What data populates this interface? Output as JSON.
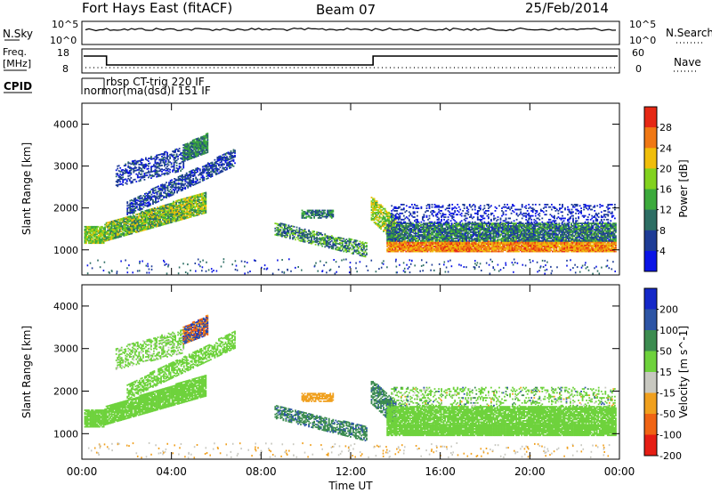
{
  "header": {
    "station": "Fort Hays East (fitACF)",
    "beam": "Beam 07",
    "date": "25/Feb/2014"
  },
  "strips": {
    "nsky": {
      "label": "N.Sky",
      "tick_top": "10^5",
      "tick_bottom": "10^0"
    },
    "nsearch": {
      "label": "N.Search",
      "tick_top": "10^5",
      "tick_bottom": "10^0"
    },
    "freq": {
      "label_line1": "Freq.",
      "label_line2": "[MHz]",
      "tick_top": "18",
      "tick_bottom": "8"
    },
    "nave": {
      "label": "Nave",
      "tick_top": "60",
      "tick_bottom": "0"
    },
    "cpid": {
      "label": "CPID",
      "program_1": "rbsp CT-trig 220 IF",
      "program_2": "normor(ma(dsd)I 151 IF"
    }
  },
  "chart_data": [
    {
      "type": "heatmap",
      "title": "",
      "xlabel": "",
      "ylabel": "Slant Range [km]",
      "xlim": [
        0,
        24
      ],
      "ylim": [
        400,
        4500
      ],
      "x_ticks": [
        0,
        4,
        8,
        12,
        16,
        20,
        24
      ],
      "y_ticks": [
        1000,
        2000,
        3000,
        4000
      ],
      "y_tick_labels": [
        "1000",
        "2000",
        "3000",
        "4000"
      ],
      "colorbar": {
        "label": "Power [dB]",
        "range": [
          0,
          32
        ],
        "ticks": [
          4,
          8,
          12,
          16,
          20,
          24,
          28
        ],
        "tick_labels": [
          "4",
          "8",
          "12",
          "16",
          "20",
          "24",
          "28"
        ],
        "colors": [
          "#0a14e6",
          "#1e3c96",
          "#2d6e64",
          "#3caa3c",
          "#82d21e",
          "#f0be0a",
          "#f07814",
          "#e62814"
        ]
      }
    },
    {
      "type": "heatmap",
      "title": "",
      "xlabel": "Time UT",
      "ylabel": "Slant Range [km]",
      "xlim": [
        0,
        24
      ],
      "ylim": [
        400,
        4500
      ],
      "x_ticks": [
        0,
        4,
        8,
        12,
        16,
        20,
        24
      ],
      "x_tick_labels": [
        "00:00",
        "04:00",
        "08:00",
        "12:00",
        "16:00",
        "20:00",
        "00:00"
      ],
      "y_ticks": [
        1000,
        2000,
        3000,
        4000
      ],
      "y_tick_labels": [
        "1000",
        "2000",
        "3000",
        "4000"
      ],
      "colorbar": {
        "label": "Velocity [m s^-1]",
        "range": [
          -250,
          250
        ],
        "ticks": [
          200,
          100,
          50,
          15,
          -15,
          -50,
          -100,
          -200
        ],
        "tick_labels": [
          "200",
          "100",
          "50",
          "15",
          "-15",
          "-50",
          "-100",
          "-200"
        ],
        "colors": [
          "#1428c8",
          "#2d55a5",
          "#3c8c50",
          "#6ed23c",
          "#c8c8c0",
          "#f0a01e",
          "#f06414",
          "#e61e14"
        ]
      }
    }
  ]
}
